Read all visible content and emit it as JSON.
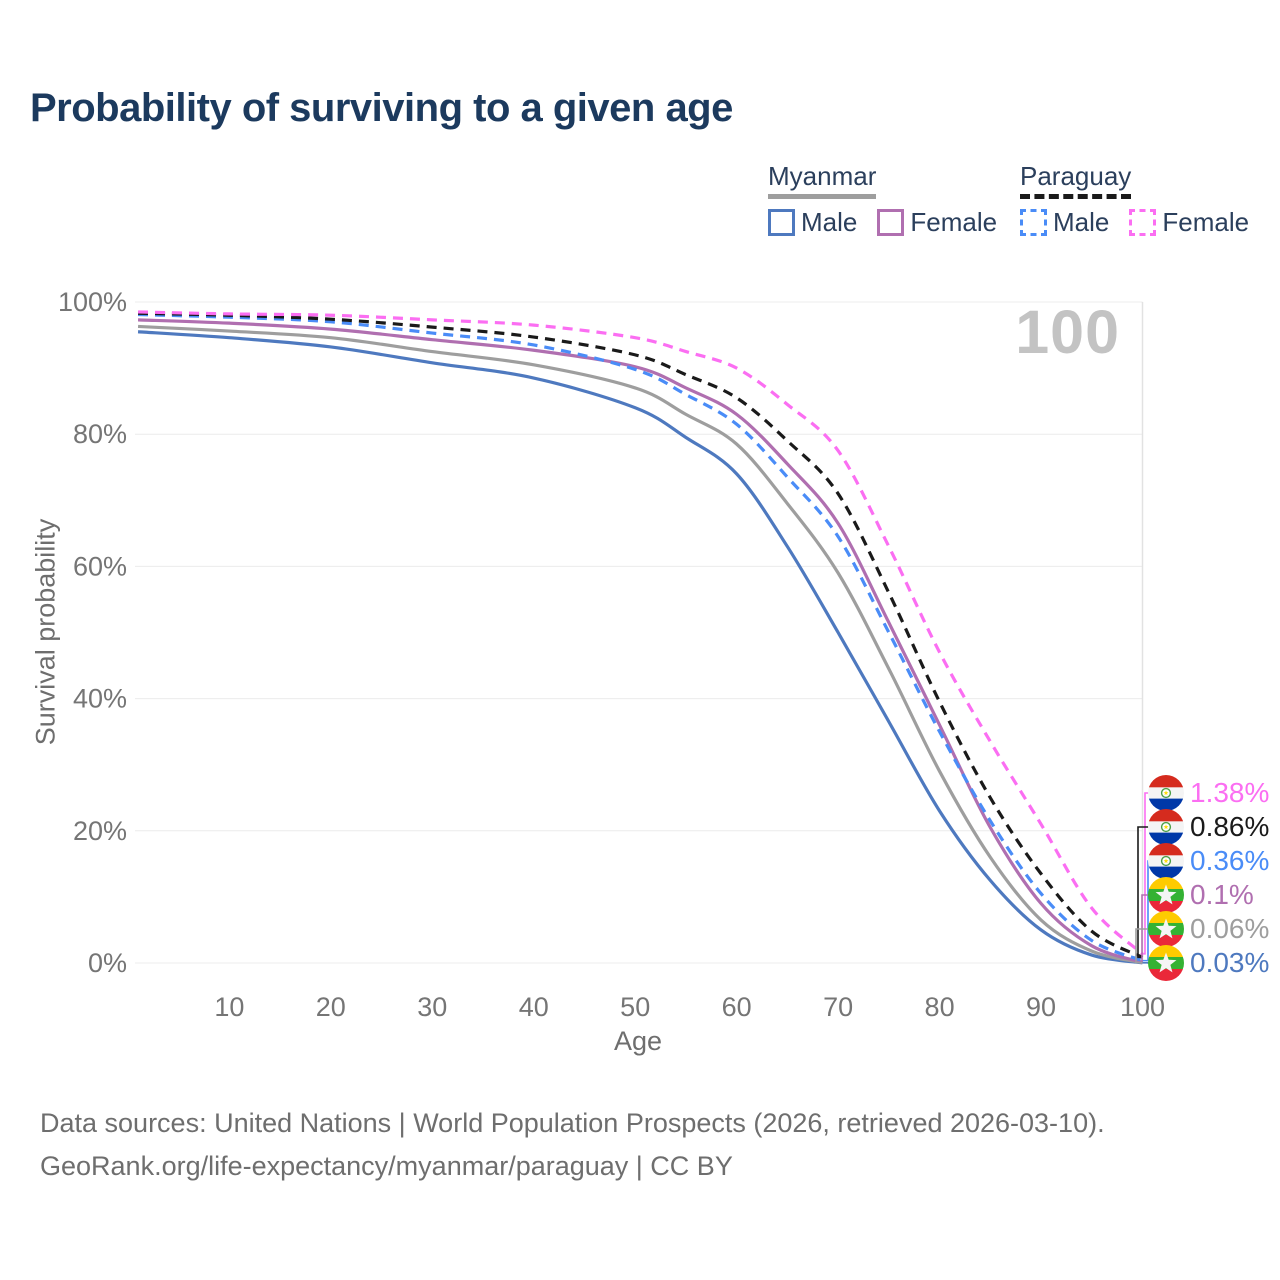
{
  "title": "Probability of surviving to a given age",
  "legend": {
    "groups": [
      {
        "name": "Myanmar",
        "line_style": "solid",
        "line_color": "#9e9e9e",
        "items": [
          {
            "label": "Male",
            "color": "#4e79bf",
            "dashed": false
          },
          {
            "label": "Female",
            "color": "#b06fb0",
            "dashed": false
          }
        ]
      },
      {
        "name": "Paraguay",
        "line_style": "dashed",
        "line_color": "#1a1a1a",
        "items": [
          {
            "label": "Male",
            "color": "#4a8cf7",
            "dashed": true
          },
          {
            "label": "Female",
            "color": "#fb6ef2",
            "dashed": true
          }
        ]
      }
    ]
  },
  "chart_data": {
    "type": "line",
    "title": "Probability of surviving to a given age",
    "xlabel": "Age",
    "ylabel": "Survival probability",
    "xlim": [
      0,
      100
    ],
    "ylim": [
      0,
      100
    ],
    "grid": "horizontal",
    "x_ticks": [
      10,
      20,
      30,
      40,
      50,
      60,
      70,
      80,
      90,
      100
    ],
    "y_ticks": [
      "0%",
      "20%",
      "40%",
      "60%",
      "80%",
      "100%"
    ],
    "hover_age_watermark": "100",
    "x": [
      1,
      10,
      20,
      30,
      40,
      50,
      55,
      60,
      65,
      70,
      75,
      80,
      85,
      90,
      95,
      100
    ],
    "series": [
      {
        "name": "Myanmar Male",
        "country": "Myanmar",
        "sex": "Male",
        "color": "#4e79bf",
        "dash": "solid",
        "values": [
          95.5,
          94.6,
          93.2,
          90.8,
          88.5,
          84,
          79.5,
          74,
          63,
          50,
          36.5,
          23,
          12.5,
          5,
          1.2,
          0.03
        ]
      },
      {
        "name": "Myanmar Total",
        "country": "Myanmar",
        "sex": "Total",
        "color": "#9e9e9e",
        "dash": "solid",
        "values": [
          96.3,
          95.6,
          94.6,
          92.5,
          90.5,
          87,
          83,
          78.5,
          69.5,
          59,
          44.5,
          29,
          16,
          6.5,
          1.8,
          0.06
        ]
      },
      {
        "name": "Myanmar Female",
        "country": "Myanmar",
        "sex": "Female",
        "color": "#b06fb0",
        "dash": "solid",
        "values": [
          97.3,
          96.8,
          95.9,
          94.3,
          92.7,
          90.2,
          87,
          83,
          75.5,
          66.5,
          51.5,
          36,
          20.5,
          9,
          2.6,
          0.1
        ]
      },
      {
        "name": "Paraguay Male",
        "country": "Paraguay",
        "sex": "Male",
        "color": "#4a8cf7",
        "dash": "dashed",
        "values": [
          98.1,
          97.7,
          97,
          95.3,
          93.5,
          89.8,
          86,
          81.5,
          73.5,
          64.5,
          50,
          35,
          21.5,
          10.5,
          3.4,
          0.36
        ]
      },
      {
        "name": "Paraguay Total",
        "country": "Paraguay",
        "sex": "Total",
        "color": "#1a1a1a",
        "dash": "dashed",
        "values": [
          98.3,
          98,
          97.4,
          96.2,
          94.7,
          92,
          89,
          85.5,
          79,
          71,
          56,
          39.5,
          25,
          13.5,
          4.8,
          0.86
        ]
      },
      {
        "name": "Paraguay Female",
        "country": "Paraguay",
        "sex": "Female",
        "color": "#fb6ef2",
        "dash": "dashed",
        "values": [
          98.5,
          98.2,
          98,
          97.3,
          96.5,
          94.6,
          92.5,
          90,
          84.5,
          77.5,
          63,
          47,
          33.5,
          21,
          8.3,
          1.38
        ]
      }
    ],
    "end_labels": [
      {
        "value": "1.38%",
        "color": "#fb6ef2",
        "flag": "paraguay",
        "series": "Paraguay Female"
      },
      {
        "value": "0.86%",
        "color": "#1a1a1a",
        "flag": "paraguay",
        "series": "Paraguay Total"
      },
      {
        "value": "0.36%",
        "color": "#4a8cf7",
        "flag": "paraguay",
        "series": "Paraguay Male"
      },
      {
        "value": "0.1%",
        "color": "#b06fb0",
        "flag": "myanmar",
        "series": "Myanmar Female"
      },
      {
        "value": "0.06%",
        "color": "#9e9e9e",
        "flag": "myanmar",
        "series": "Myanmar Total"
      },
      {
        "value": "0.03%",
        "color": "#4e79bf",
        "flag": "myanmar",
        "series": "Myanmar Male"
      }
    ]
  },
  "footer": {
    "line1": "Data sources: United Nations | World Population Prospects (2026, retrieved 2026-03-10).",
    "line2": "GeoRank.org/life-expectancy/myanmar/paraguay | CC BY"
  }
}
